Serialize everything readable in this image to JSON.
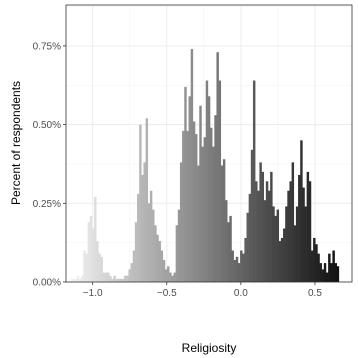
{
  "chart_data": {
    "type": "bar",
    "title": "",
    "xlabel": "Religiosity",
    "ylabel": "Percent of respondents",
    "xlim": [
      -1.18,
      0.75
    ],
    "ylim": [
      0,
      0.0088
    ],
    "grid": true,
    "legend": "none",
    "fill": "gradient from #f2f2f2 (x=-1.1) to #111111 (x=0.7) by x position",
    "x_ticks": [
      {
        "value": -1.0,
        "label": "−1.0"
      },
      {
        "value": -0.5,
        "label": "−0.5"
      },
      {
        "value": 0.0,
        "label": "0.0"
      },
      {
        "value": 0.5,
        "label": "0.5"
      }
    ],
    "y_ticks": [
      {
        "value": 0.0,
        "label": "0.00%"
      },
      {
        "value": 0.0025,
        "label": "0.25%"
      },
      {
        "value": 0.005,
        "label": "0.50%"
      },
      {
        "value": 0.0075,
        "label": "0.75%"
      }
    ],
    "bins": {
      "start": -1.15,
      "width": 0.01449,
      "values": [
        0.0001,
        0.0001,
        0.0001,
        0.0002,
        0.0001,
        0.0002,
        0.001,
        0.0009,
        0.0019,
        0.0021,
        0.0017,
        0.0027,
        0.0013,
        0.0009,
        0.0008,
        0.0003,
        0.0003,
        0.0003,
        0.0002,
        0.0001,
        0.0002,
        0.0001,
        0.0001,
        0.0001,
        0.0001,
        0.0002,
        0.0002,
        0.0004,
        0.0006,
        0.001,
        0.0019,
        0.0028,
        0.005,
        0.0034,
        0.0038,
        0.0052,
        0.0025,
        0.0029,
        0.0023,
        0.0018,
        0.0015,
        0.0013,
        0.001,
        0.0007,
        0.0004,
        0.0005,
        0.0003,
        0.0002,
        0.0003,
        0.0018,
        0.0023,
        0.0038,
        0.0048,
        0.0062,
        0.0048,
        0.0059,
        0.0074,
        0.0051,
        0.0047,
        0.0037,
        0.0056,
        0.0043,
        0.0046,
        0.0064,
        0.0059,
        0.0049,
        0.0043,
        0.0053,
        0.0073,
        0.0064,
        0.0037,
        0.0039,
        0.0026,
        0.0019,
        0.0021,
        0.001,
        0.0007,
        0.0008,
        0.0006,
        0.001,
        0.0009,
        0.0014,
        0.0022,
        0.0028,
        0.0042,
        0.0064,
        0.0032,
        0.0029,
        0.0038,
        0.0035,
        0.0026,
        0.0032,
        0.0029,
        0.0035,
        0.0024,
        0.0021,
        0.0023,
        0.0013,
        0.0014,
        0.0017,
        0.0024,
        0.0029,
        0.0032,
        0.0038,
        0.0018,
        0.0024,
        0.0034,
        0.0045,
        0.003,
        0.0024,
        0.0035,
        0.0032,
        0.001,
        0.0014,
        0.0012,
        0.0009,
        0.0006,
        0.0004,
        0.0006,
        0.0003,
        0.0009,
        0.0006,
        0.001,
        0.0006,
        0.0005
      ]
    }
  }
}
